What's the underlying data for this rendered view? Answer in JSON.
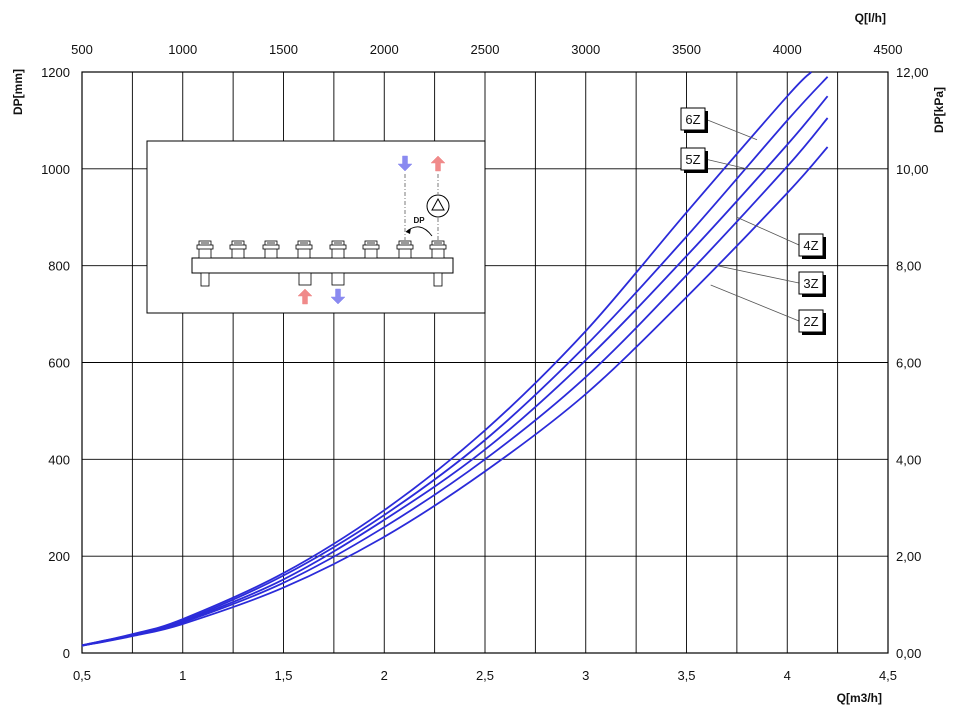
{
  "chart_data": {
    "type": "line",
    "x_bottom": {
      "label": "Q[m3/h]",
      "ticks": [
        "0,5",
        "1",
        "1,5",
        "2",
        "2,5",
        "3",
        "3,5",
        "4",
        "4,5"
      ],
      "range": [
        0.5,
        4.5
      ]
    },
    "x_top": {
      "label": "Q[l/h]",
      "ticks": [
        "500",
        "1000",
        "1500",
        "2000",
        "2500",
        "3000",
        "3500",
        "4000",
        "4500"
      ],
      "range": [
        500,
        4500
      ]
    },
    "y_left": {
      "label": "DP[mm]",
      "ticks": [
        "0",
        "200",
        "400",
        "600",
        "800",
        "1000",
        "1200"
      ],
      "range": [
        0,
        1200
      ]
    },
    "y_right": {
      "label": "DP[kPa]",
      "ticks": [
        "0,00",
        "2,00",
        "4,00",
        "6,00",
        "8,00",
        "10,00",
        "12,00"
      ],
      "range": [
        0,
        12
      ]
    },
    "grid": true,
    "line_color": "#2b2bd9",
    "series": [
      {
        "name": "2Z",
        "x": [
          0.5,
          0.75,
          1,
          1.5,
          2,
          2.5,
          3,
          3.5,
          4,
          4.2
        ],
        "y": [
          15,
          35,
          60,
          135,
          240,
          375,
          535,
          735,
          950,
          1045
        ]
      },
      {
        "name": "3Z",
        "x": [
          0.5,
          0.75,
          1,
          1.5,
          2,
          2.5,
          3,
          3.5,
          4,
          4.2
        ],
        "y": [
          15,
          36,
          63,
          145,
          260,
          400,
          570,
          780,
          1005,
          1105
        ]
      },
      {
        "name": "4Z",
        "x": [
          0.5,
          0.75,
          1,
          1.5,
          2,
          2.5,
          3,
          3.5,
          4,
          4.2
        ],
        "y": [
          15,
          37,
          65,
          152,
          275,
          420,
          605,
          820,
          1050,
          1150
        ]
      },
      {
        "name": "5Z",
        "x": [
          0.5,
          0.75,
          1,
          1.5,
          2,
          2.5,
          3,
          3.5,
          4,
          4.2
        ],
        "y": [
          16,
          38,
          67,
          160,
          285,
          440,
          635,
          860,
          1100,
          1190
        ]
      },
      {
        "name": "6Z",
        "x": [
          0.5,
          0.75,
          1,
          1.5,
          2,
          2.5,
          3,
          3.5,
          4,
          4.12
        ],
        "y": [
          16,
          39,
          70,
          165,
          295,
          460,
          665,
          910,
          1150,
          1200
        ]
      }
    ],
    "inset": {
      "label": "DP"
    }
  }
}
